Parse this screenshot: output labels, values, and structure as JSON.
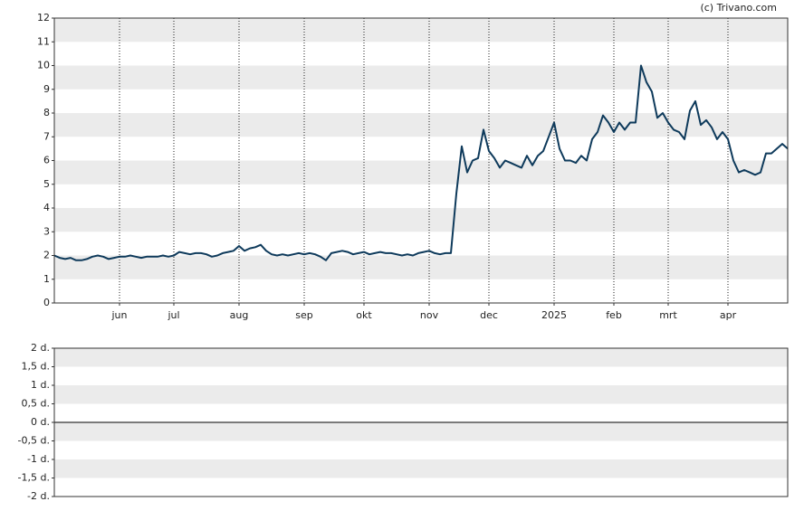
{
  "chart_data": [
    {
      "type": "line",
      "credit": "(c) Trivano.com",
      "color": "#0e3a5b",
      "grid": true,
      "band_color": "#ebebeb",
      "ylim": [
        0,
        12
      ],
      "yticks": [
        0,
        1,
        2,
        3,
        4,
        5,
        6,
        7,
        8,
        9,
        10,
        11,
        12
      ],
      "categories": [
        null,
        null,
        null,
        null,
        null,
        null,
        null,
        null,
        null,
        null,
        null,
        null,
        "jun",
        null,
        null,
        null,
        null,
        null,
        null,
        null,
        null,
        null,
        "jul",
        null,
        null,
        null,
        null,
        null,
        null,
        null,
        null,
        null,
        null,
        null,
        "aug",
        null,
        null,
        null,
        null,
        null,
        null,
        null,
        null,
        null,
        null,
        null,
        "sep",
        null,
        null,
        null,
        null,
        null,
        null,
        null,
        null,
        null,
        null,
        "okt",
        null,
        null,
        null,
        null,
        null,
        null,
        null,
        null,
        null,
        null,
        null,
        "nov",
        null,
        null,
        null,
        null,
        null,
        null,
        null,
        null,
        null,
        null,
        "dec",
        null,
        null,
        null,
        null,
        null,
        null,
        null,
        null,
        null,
        null,
        null,
        "2025",
        null,
        null,
        null,
        null,
        null,
        null,
        null,
        null,
        null,
        null,
        "feb",
        null,
        null,
        null,
        null,
        null,
        null,
        null,
        null,
        null,
        "mrt",
        null,
        null,
        null,
        null,
        null,
        null,
        null,
        null,
        null,
        null,
        "apr",
        null,
        null,
        null,
        null,
        null,
        null,
        null,
        null,
        null,
        null,
        null
      ],
      "values": [
        2.0,
        1.9,
        1.85,
        1.9,
        1.8,
        1.8,
        1.85,
        1.95,
        2.0,
        1.95,
        1.85,
        1.9,
        1.95,
        1.95,
        2.0,
        1.95,
        1.9,
        1.95,
        1.95,
        1.95,
        2.0,
        1.95,
        2.0,
        2.15,
        2.1,
        2.05,
        2.1,
        2.1,
        2.05,
        1.95,
        2.0,
        2.1,
        2.15,
        2.2,
        2.4,
        2.2,
        2.3,
        2.35,
        2.45,
        2.2,
        2.05,
        2.0,
        2.05,
        2.0,
        2.05,
        2.1,
        2.05,
        2.1,
        2.05,
        1.95,
        1.8,
        2.1,
        2.15,
        2.2,
        2.15,
        2.05,
        2.1,
        2.15,
        2.05,
        2.1,
        2.15,
        2.1,
        2.1,
        2.05,
        2.0,
        2.05,
        2.0,
        2.1,
        2.15,
        2.2,
        2.1,
        2.05,
        2.1,
        2.1,
        4.6,
        6.6,
        5.5,
        6.0,
        6.1,
        7.3,
        6.4,
        6.1,
        5.7,
        6.0,
        5.9,
        5.8,
        5.7,
        6.2,
        5.8,
        6.2,
        6.4,
        7.0,
        7.6,
        6.5,
        6.0,
        6.0,
        5.9,
        6.2,
        6.0,
        6.9,
        7.2,
        7.9,
        7.6,
        7.2,
        7.6,
        7.3,
        7.6,
        7.6,
        10.0,
        9.3,
        8.9,
        7.8,
        8.0,
        7.6,
        7.3,
        7.2,
        6.9,
        8.1,
        8.5,
        7.5,
        7.7,
        7.4,
        6.9,
        7.2,
        6.9,
        6.0,
        5.5,
        5.6,
        5.5,
        5.4,
        5.5,
        6.3,
        6.3,
        6.5,
        6.7,
        6.5
      ]
    },
    {
      "type": "line",
      "grid": true,
      "band_color": "#ebebeb",
      "zero_line": true,
      "ylim": [
        -2,
        2
      ],
      "yticks": [
        {
          "value": -2,
          "label": "-2 d."
        },
        {
          "value": -1.5,
          "label": "-1,5 d."
        },
        {
          "value": -1,
          "label": "-1 d."
        },
        {
          "value": -0.5,
          "label": "-0,5 d."
        },
        {
          "value": 0,
          "label": "0 d."
        },
        {
          "value": 0.5,
          "label": "0,5 d."
        },
        {
          "value": 1,
          "label": "1 d."
        },
        {
          "value": 1.5,
          "label": "1,5 d."
        },
        {
          "value": 2,
          "label": "2 d."
        }
      ]
    }
  ]
}
